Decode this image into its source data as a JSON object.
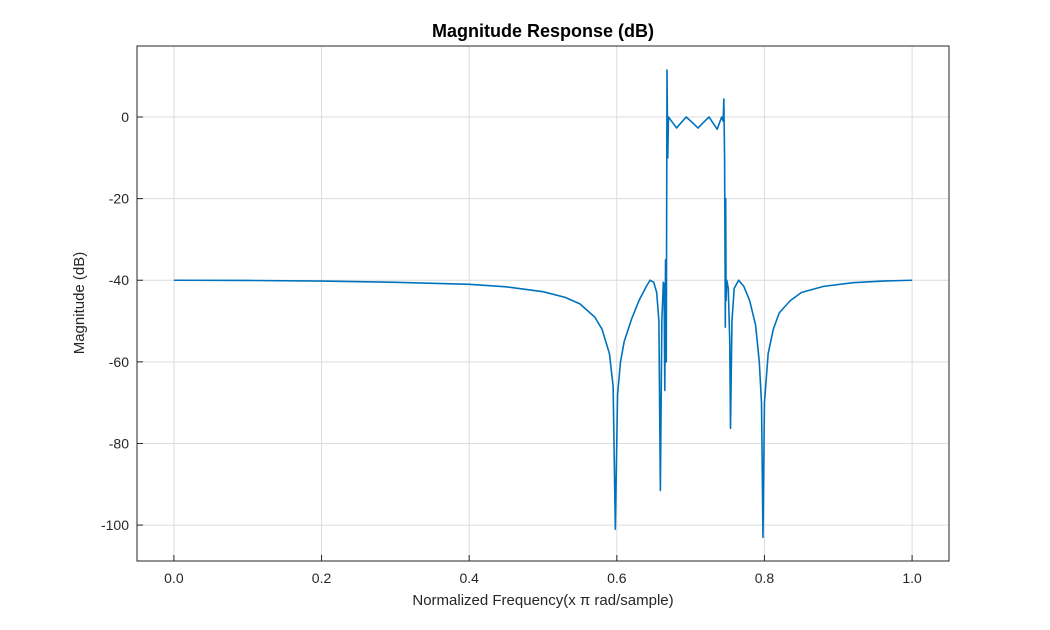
{
  "chart_data": {
    "type": "line",
    "title": "Magnitude Response (dB)",
    "xlabel": "Normalized Frequency(x π rad/sample)",
    "ylabel": "Magnitude (dB)",
    "xlim": [
      -0.05,
      1.05
    ],
    "ylim": [
      -108.8,
      17.4
    ],
    "xticks": [
      0,
      0.2,
      0.4,
      0.6,
      0.8,
      1.0
    ],
    "xtick_labels": [
      "0.0",
      "0.2",
      "0.4",
      "0.6",
      "0.8",
      "1.0"
    ],
    "yticks": [
      0,
      -20,
      -40,
      -60,
      -80,
      -100
    ],
    "ytick_labels": [
      "0",
      "-20",
      "-40",
      "-60",
      "-80",
      "-100"
    ],
    "grid": true,
    "line_color": "#0072bd",
    "series": [
      {
        "name": "Magnitude",
        "x": [
          0,
          0.1,
          0.2,
          0.3,
          0.4,
          0.45,
          0.5,
          0.53,
          0.55,
          0.57,
          0.58,
          0.59,
          0.595,
          0.598,
          0.601,
          0.605,
          0.61,
          0.62,
          0.63,
          0.64,
          0.645,
          0.65,
          0.654,
          0.657,
          0.659,
          0.661,
          0.663,
          0.664,
          0.665,
          0.666,
          0.667,
          0.668,
          0.669,
          0.67,
          0.672,
          0.6765,
          0.681,
          0.6875,
          0.694,
          0.702,
          0.71,
          0.7175,
          0.725,
          0.7305,
          0.736,
          0.742,
          0.744,
          0.745,
          0.746,
          0.7465,
          0.747,
          0.7475,
          0.748,
          0.749,
          0.751,
          0.753,
          0.754,
          0.756,
          0.759,
          0.765,
          0.772,
          0.78,
          0.788,
          0.793,
          0.796,
          0.798,
          0.8,
          0.805,
          0.812,
          0.82,
          0.835,
          0.85,
          0.88,
          0.92,
          0.96,
          1.0
        ],
        "y": [
          -40,
          -40.05,
          -40.2,
          -40.5,
          -41,
          -41.6,
          -42.8,
          -44.2,
          -45.8,
          -49,
          -52,
          -58,
          -66,
          -101,
          -68,
          -60,
          -55,
          -49.5,
          -45,
          -41.5,
          -40,
          -40.5,
          -43,
          -50,
          -91.5,
          -50,
          -40.5,
          -41,
          -67,
          -35,
          -60,
          11.5,
          -10,
          0,
          -0.5,
          -1.6,
          -2.7,
          -1.3,
          0,
          -1.3,
          -2.7,
          -1.3,
          0,
          -1.5,
          -3,
          0,
          -1,
          4.4,
          -10,
          -30,
          -51.5,
          -20,
          -45,
          -40,
          -42,
          -55,
          -76.3,
          -50,
          -42,
          -40,
          -41.5,
          -45,
          -51,
          -60,
          -70,
          -103,
          -70,
          -58,
          -52,
          -48,
          -45,
          -43,
          -41.5,
          -40.6,
          -40.2,
          -40
        ]
      }
    ]
  }
}
